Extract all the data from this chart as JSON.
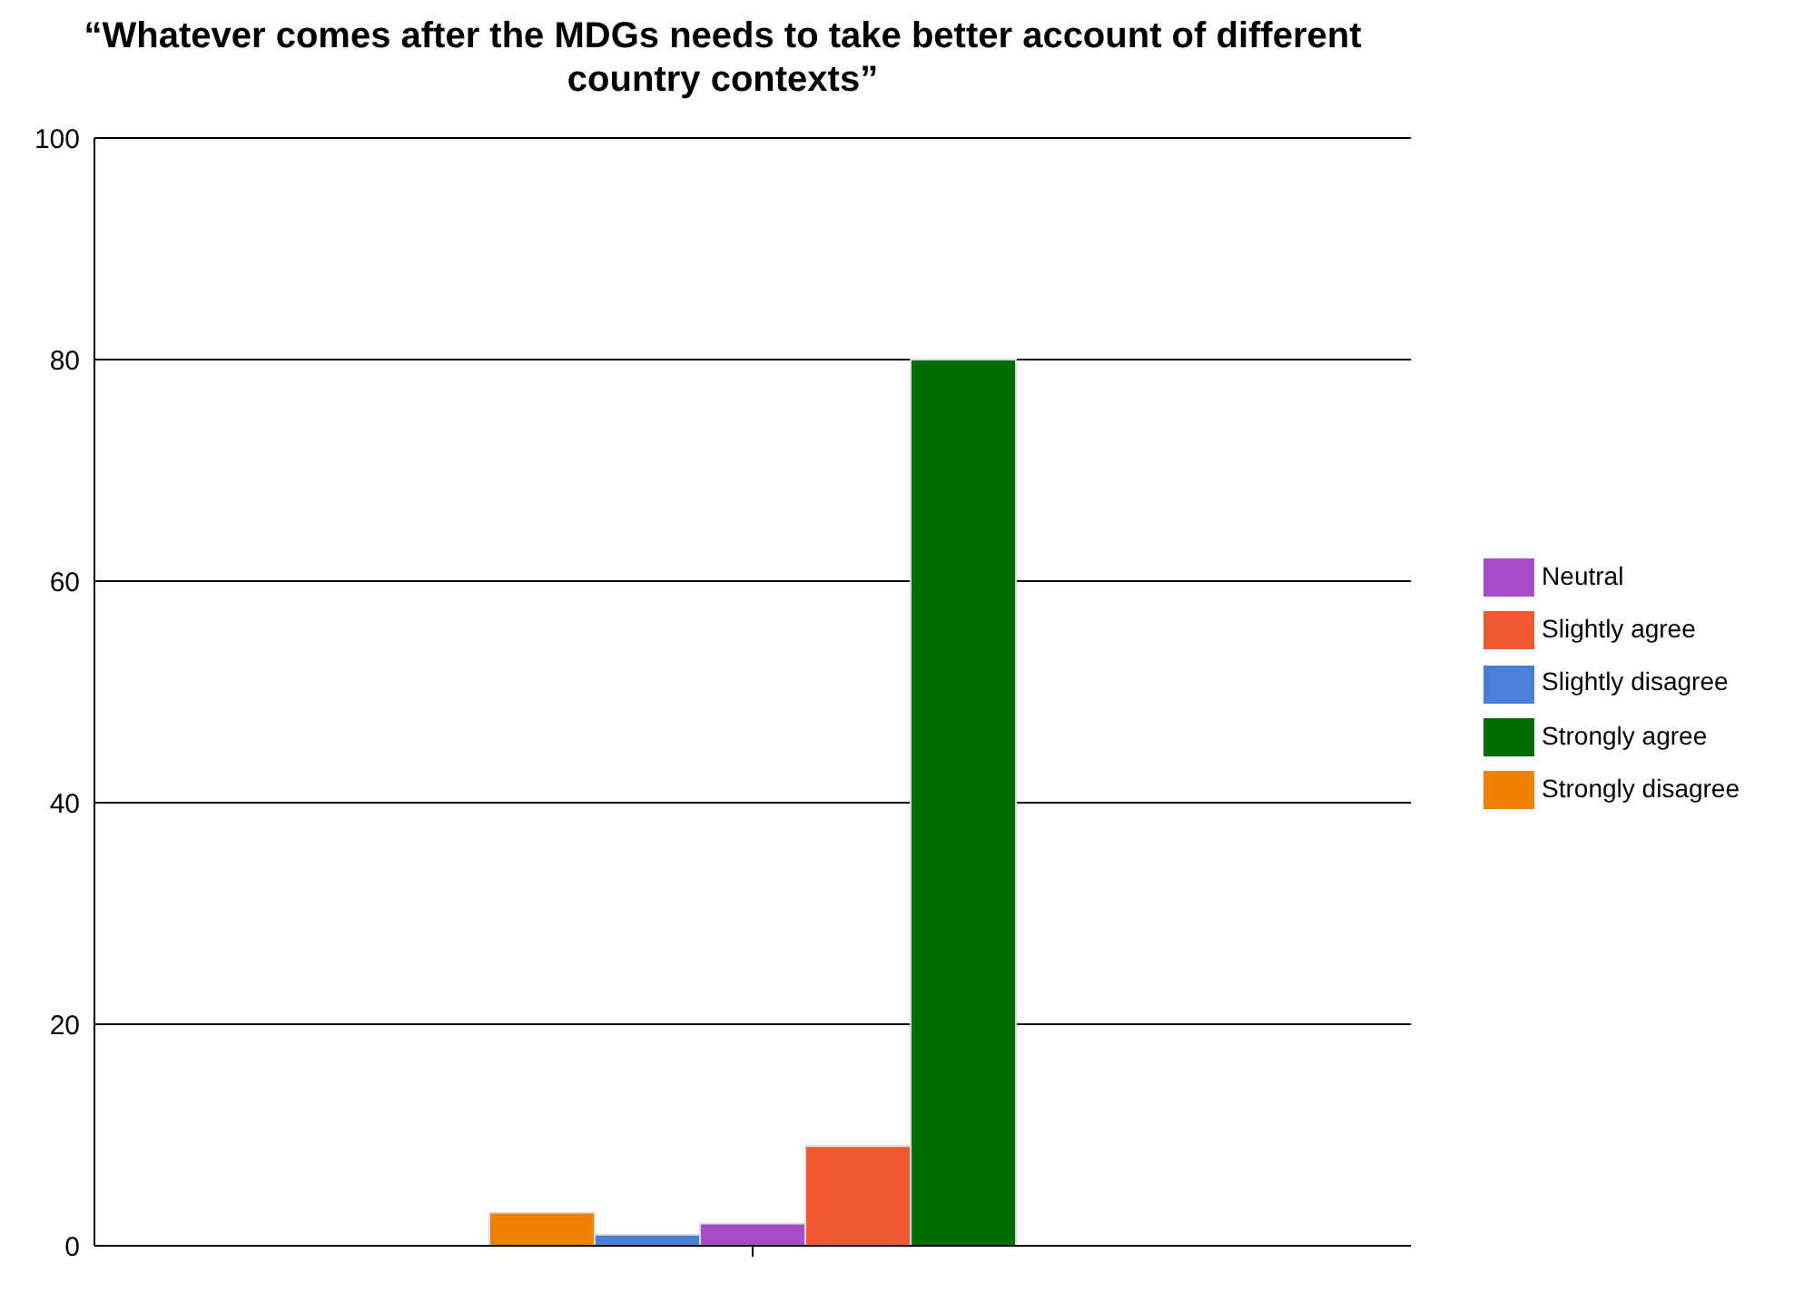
{
  "chart_data": {
    "type": "bar",
    "title": "“Whatever comes after the MDGs needs to take better account of different country contexts”",
    "categories": [
      null
    ],
    "series": [
      {
        "name": "Strongly disagree",
        "color": "#f08000",
        "values": [
          3
        ]
      },
      {
        "name": "Slightly disagree",
        "color": "#4a7fd8",
        "values": [
          1
        ]
      },
      {
        "name": "Neutral",
        "color": "#a64cc8",
        "values": [
          2
        ]
      },
      {
        "name": "Slightly agree",
        "color": "#f05a30",
        "values": [
          9
        ]
      },
      {
        "name": "Strongly agree",
        "color": "#006e00",
        "values": [
          80
        ]
      }
    ],
    "ylim": [
      0,
      100
    ],
    "yticks": [
      0,
      20,
      40,
      60,
      80,
      100
    ],
    "grid": "y",
    "legend": "right"
  }
}
